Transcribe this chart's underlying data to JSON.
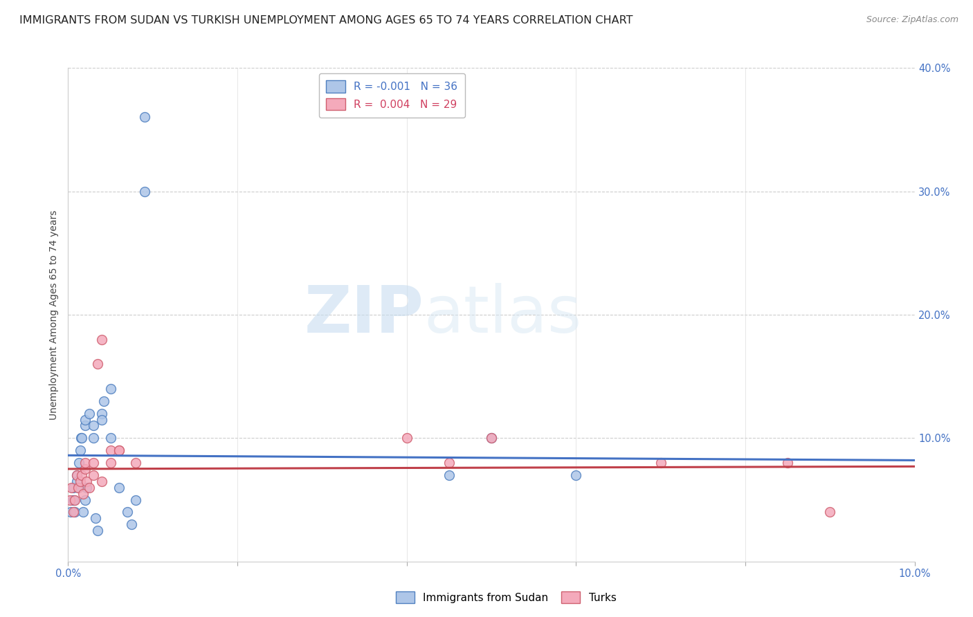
{
  "title": "IMMIGRANTS FROM SUDAN VS TURKISH UNEMPLOYMENT AMONG AGES 65 TO 74 YEARS CORRELATION CHART",
  "source": "Source: ZipAtlas.com",
  "ylabel": "Unemployment Among Ages 65 to 74 years",
  "legend1_label": "R = -0.001   N = 36",
  "legend2_label": "R =  0.004   N = 29",
  "watermark_zip": "ZIP",
  "watermark_atlas": "atlas",
  "xlim": [
    0.0,
    0.1
  ],
  "ylim": [
    0.0,
    0.4
  ],
  "yticks": [
    0.0,
    0.1,
    0.2,
    0.3,
    0.4
  ],
  "ytick_labels": [
    "",
    "10.0%",
    "20.0%",
    "30.0%",
    "40.0%"
  ],
  "sudan_x": [
    0.0003,
    0.0005,
    0.0006,
    0.0007,
    0.0008,
    0.001,
    0.001,
    0.0012,
    0.0013,
    0.0014,
    0.0015,
    0.0016,
    0.0018,
    0.002,
    0.002,
    0.002,
    0.0022,
    0.0025,
    0.003,
    0.003,
    0.0032,
    0.0035,
    0.004,
    0.004,
    0.0042,
    0.005,
    0.005,
    0.006,
    0.007,
    0.0075,
    0.008,
    0.009,
    0.009,
    0.045,
    0.05,
    0.06
  ],
  "sudan_y": [
    0.04,
    0.05,
    0.06,
    0.05,
    0.04,
    0.07,
    0.065,
    0.06,
    0.08,
    0.09,
    0.1,
    0.1,
    0.04,
    0.11,
    0.115,
    0.05,
    0.06,
    0.12,
    0.1,
    0.11,
    0.035,
    0.025,
    0.12,
    0.115,
    0.13,
    0.14,
    0.1,
    0.06,
    0.04,
    0.03,
    0.05,
    0.3,
    0.36,
    0.07,
    0.1,
    0.07
  ],
  "turks_x": [
    0.0002,
    0.0004,
    0.0006,
    0.0008,
    0.001,
    0.0012,
    0.0014,
    0.0016,
    0.0018,
    0.002,
    0.002,
    0.0022,
    0.0025,
    0.003,
    0.003,
    0.0035,
    0.004,
    0.004,
    0.005,
    0.005,
    0.006,
    0.006,
    0.008,
    0.04,
    0.045,
    0.05,
    0.07,
    0.085,
    0.09
  ],
  "turks_y": [
    0.05,
    0.06,
    0.04,
    0.05,
    0.07,
    0.06,
    0.065,
    0.07,
    0.055,
    0.075,
    0.08,
    0.065,
    0.06,
    0.07,
    0.08,
    0.16,
    0.18,
    0.065,
    0.08,
    0.09,
    0.09,
    0.09,
    0.08,
    0.1,
    0.08,
    0.1,
    0.08,
    0.08,
    0.04
  ],
  "sudan_line_y_start": 0.086,
  "sudan_line_y_end": 0.082,
  "turks_line_y_start": 0.075,
  "turks_line_y_end": 0.077,
  "sudan_line_color": "#4472c4",
  "turks_line_color": "#c0404a",
  "sudan_scatter_facecolor": "#aec6e8",
  "sudan_scatter_edgecolor": "#5080c0",
  "turks_scatter_facecolor": "#f4aabb",
  "turks_scatter_edgecolor": "#d06070",
  "background_color": "#ffffff",
  "grid_color": "#cccccc",
  "grid_style": "--",
  "title_fontsize": 11.5,
  "axis_label_fontsize": 10,
  "tick_fontsize": 10.5,
  "scatter_size": 100,
  "legend_fontsize": 11
}
